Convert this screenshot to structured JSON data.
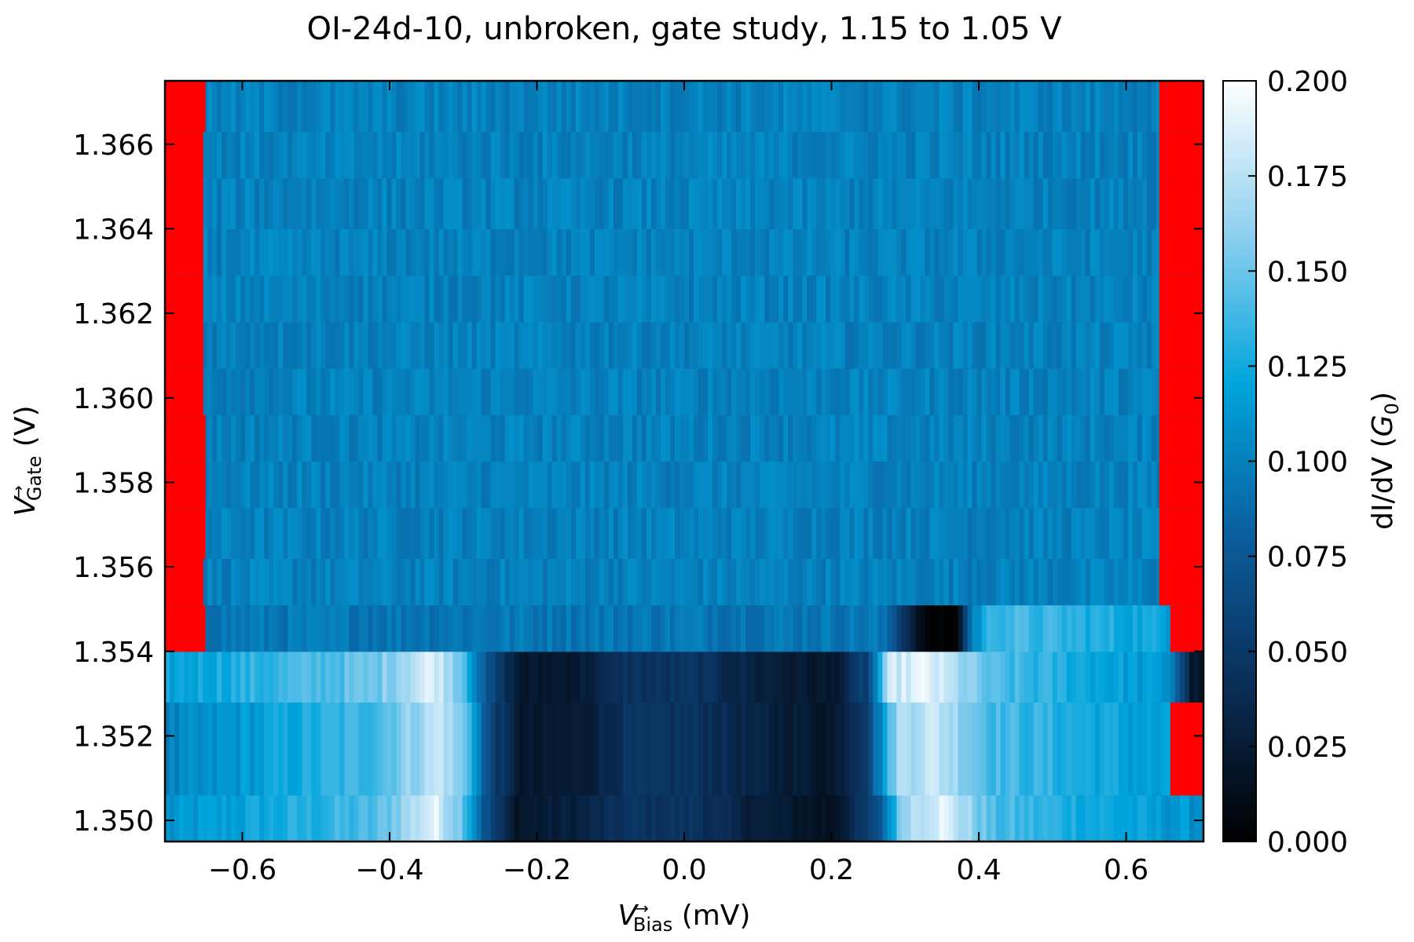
{
  "chart_data": {
    "type": "heatmap",
    "title": "OI-24d-10, unbroken, gate study, 1.15 to 1.05 V",
    "xlabel": {
      "symbol": "V",
      "arrow": "→",
      "subscript": "Bias",
      "unit": " (mV)"
    },
    "ylabel": {
      "symbol": "V",
      "arrow": "→",
      "subscript": "Gate",
      "unit": " (V)"
    },
    "colorbar_label": {
      "prefix": "dI/dV (",
      "symbol": "G",
      "subscript": "0",
      "suffix": ")"
    },
    "xlim": [
      -0.705,
      0.705
    ],
    "ylim": [
      1.3495,
      1.3675
    ],
    "clim": [
      0.0,
      0.2
    ],
    "colormap": [
      "#000000",
      "#0a2c55",
      "#0b5d9d",
      "#00a4dc",
      "#8fd0ef",
      "#ffffff"
    ],
    "out_of_range_color": "#ff0000",
    "x_ticks": [
      -0.6,
      -0.4,
      -0.2,
      0.0,
      0.2,
      0.4,
      0.6
    ],
    "x_tick_labels": [
      "−0.6",
      "−0.4",
      "−0.2",
      "0.0",
      "0.2",
      "0.4",
      "0.6"
    ],
    "y_ticks": [
      1.35,
      1.352,
      1.354,
      1.356,
      1.358,
      1.36,
      1.362,
      1.364,
      1.366
    ],
    "y_tick_labels": [
      "1.350",
      "1.352",
      "1.354",
      "1.356",
      "1.358",
      "1.360",
      "1.362",
      "1.364",
      "1.366"
    ],
    "colorbar_ticks": [
      0.0,
      0.025,
      0.05,
      0.075,
      0.1,
      0.125,
      0.15,
      0.175,
      0.2
    ],
    "colorbar_tick_labels": [
      "0.000",
      "0.025",
      "0.050",
      "0.075",
      "0.100",
      "0.125",
      "0.150",
      "0.175",
      "0.200"
    ],
    "gate_rows": [
      {
        "y0": 1.3495,
        "y1": 1.3506,
        "profile": [
          [
            -0.69,
            0.11
          ],
          [
            -0.42,
            0.14
          ],
          [
            -0.34,
            0.19
          ],
          [
            -0.3,
            0.15
          ],
          [
            -0.27,
            0.07
          ],
          [
            -0.23,
            0.02
          ],
          [
            -0.14,
            0.03
          ],
          [
            -0.08,
            0.045
          ],
          [
            0.02,
            0.045
          ],
          [
            0.08,
            0.03
          ],
          [
            0.2,
            0.015
          ],
          [
            0.26,
            0.06
          ],
          [
            0.3,
            0.17
          ],
          [
            0.35,
            0.19
          ],
          [
            0.42,
            0.14
          ],
          [
            0.69,
            0.11
          ]
        ],
        "red_left": 0.0,
        "red_right": 0.0
      },
      {
        "y0": 1.3506,
        "y1": 1.3528,
        "profile": [
          [
            -0.69,
            0.1
          ],
          [
            -0.42,
            0.14
          ],
          [
            -0.33,
            0.18
          ],
          [
            -0.29,
            0.14
          ],
          [
            -0.27,
            0.07
          ],
          [
            -0.22,
            0.02
          ],
          [
            -0.14,
            0.025
          ],
          [
            -0.08,
            0.045
          ],
          [
            0.02,
            0.045
          ],
          [
            0.1,
            0.03
          ],
          [
            0.2,
            0.02
          ],
          [
            0.25,
            0.06
          ],
          [
            0.29,
            0.17
          ],
          [
            0.34,
            0.18
          ],
          [
            0.42,
            0.14
          ],
          [
            0.69,
            0.11
          ]
        ],
        "red_left": 0.0,
        "red_right": 0.045
      },
      {
        "y0": 1.3528,
        "y1": 1.354,
        "profile": [
          [
            -0.69,
            0.12
          ],
          [
            -0.42,
            0.15
          ],
          [
            -0.34,
            0.19
          ],
          [
            -0.3,
            0.15
          ],
          [
            -0.27,
            0.07
          ],
          [
            -0.22,
            0.02
          ],
          [
            -0.14,
            0.025
          ],
          [
            -0.08,
            0.045
          ],
          [
            0.02,
            0.045
          ],
          [
            0.1,
            0.03
          ],
          [
            0.2,
            0.02
          ],
          [
            0.25,
            0.06
          ],
          [
            0.28,
            0.18
          ],
          [
            0.33,
            0.19
          ],
          [
            0.42,
            0.14
          ],
          [
            0.66,
            0.11
          ],
          [
            0.69,
            0.02
          ]
        ],
        "red_left": 0.0,
        "red_right": 0.0
      },
      {
        "y0": 1.354,
        "y1": 1.3551,
        "profile": [
          [
            -0.69,
            0.095
          ],
          [
            0.26,
            0.095
          ],
          [
            0.28,
            0.08
          ],
          [
            0.31,
            0.03
          ],
          [
            0.33,
            0.0
          ],
          [
            0.37,
            0.0
          ],
          [
            0.39,
            0.1
          ],
          [
            0.42,
            0.14
          ],
          [
            0.66,
            0.12
          ]
        ],
        "red_left": 0.055,
        "red_right": 0.045
      },
      {
        "y0": 1.3551,
        "y1": 1.3562,
        "profile": [
          [
            -0.69,
            0.1
          ],
          [
            0.69,
            0.1
          ]
        ],
        "red_left": 0.052,
        "red_right": 0.06
      },
      {
        "y0": 1.3562,
        "y1": 1.3574,
        "profile": [
          [
            -0.69,
            0.1
          ],
          [
            0.69,
            0.1
          ]
        ],
        "red_left": 0.055,
        "red_right": 0.06
      },
      {
        "y0": 1.3574,
        "y1": 1.3585,
        "profile": [
          [
            -0.69,
            0.1
          ],
          [
            0.69,
            0.1
          ]
        ],
        "red_left": 0.055,
        "red_right": 0.06
      },
      {
        "y0": 1.3585,
        "y1": 1.3596,
        "profile": [
          [
            -0.69,
            0.1
          ],
          [
            0.69,
            0.1
          ]
        ],
        "red_left": 0.055,
        "red_right": 0.06
      },
      {
        "y0": 1.3596,
        "y1": 1.3607,
        "profile": [
          [
            -0.69,
            0.1
          ],
          [
            0.69,
            0.1
          ]
        ],
        "red_left": 0.052,
        "red_right": 0.06
      },
      {
        "y0": 1.3607,
        "y1": 1.3618,
        "profile": [
          [
            -0.69,
            0.1
          ],
          [
            0.69,
            0.1
          ]
        ],
        "red_left": 0.052,
        "red_right": 0.06
      },
      {
        "y0": 1.3618,
        "y1": 1.3629,
        "profile": [
          [
            -0.69,
            0.1
          ],
          [
            0.69,
            0.1
          ]
        ],
        "red_left": 0.052,
        "red_right": 0.06
      },
      {
        "y0": 1.3629,
        "y1": 1.364,
        "profile": [
          [
            -0.69,
            0.1
          ],
          [
            0.69,
            0.1
          ]
        ],
        "red_left": 0.052,
        "red_right": 0.06
      },
      {
        "y0": 1.364,
        "y1": 1.3652,
        "profile": [
          [
            -0.69,
            0.1
          ],
          [
            0.69,
            0.1
          ]
        ],
        "red_left": 0.052,
        "red_right": 0.06
      },
      {
        "y0": 1.3652,
        "y1": 1.3663,
        "profile": [
          [
            -0.69,
            0.1
          ],
          [
            0.69,
            0.1
          ]
        ],
        "red_left": 0.052,
        "red_right": 0.06
      },
      {
        "y0": 1.3663,
        "y1": 1.3675,
        "profile": [
          [
            -0.69,
            0.1
          ],
          [
            0.69,
            0.1
          ]
        ],
        "red_left": 0.055,
        "red_right": 0.06
      }
    ]
  }
}
